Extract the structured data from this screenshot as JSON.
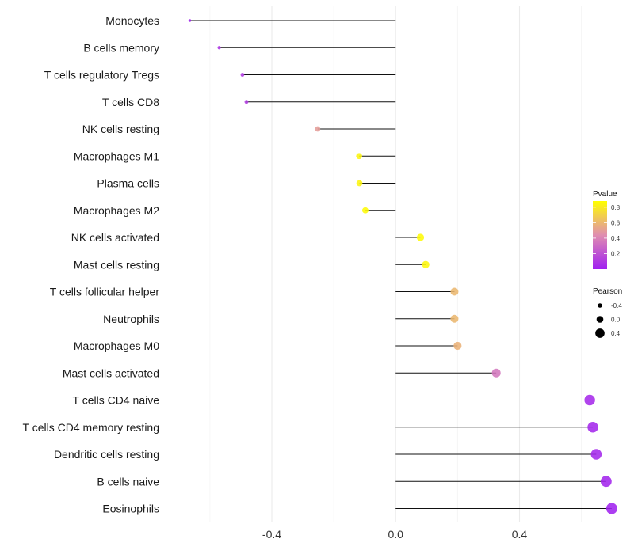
{
  "chart_data": {
    "type": "lollipop",
    "title": "",
    "xlabel": "",
    "ylabel": "",
    "xlim": [
      -0.72,
      0.77
    ],
    "x_ticks": [
      -0.4,
      0.0,
      0.4
    ],
    "x_tick_labels": [
      "-0.4",
      "0.0",
      "0.4"
    ],
    "grid": true,
    "categories": [
      "Monocytes",
      "B cells memory",
      "T cells regulatory  Tregs",
      "T cells CD8",
      "NK cells resting",
      "Macrophages M1",
      "Plasma cells",
      "Macrophages M2",
      "NK cells activated",
      "Mast cells resting",
      "T cells follicular helper",
      "Neutrophils",
      "Macrophages M0",
      "Mast cells activated",
      "T cells CD4 naive",
      "T cells CD4 memory resting",
      "Dendritic cells resting",
      "B cells naive",
      "Eosinophils"
    ],
    "pearson": [
      -0.665,
      -0.57,
      -0.495,
      -0.482,
      -0.252,
      -0.118,
      -0.117,
      -0.098,
      0.08,
      0.097,
      0.19,
      0.19,
      0.2,
      0.325,
      0.627,
      0.637,
      0.648,
      0.68,
      0.698
    ],
    "pvalue": [
      0.01,
      0.08,
      0.1,
      0.12,
      0.5,
      0.84,
      0.84,
      0.86,
      0.86,
      0.85,
      0.6,
      0.6,
      0.58,
      0.35,
      0.04,
      0.03,
      0.03,
      0.02,
      0.01
    ],
    "legend": {
      "color_title": "Pvalue",
      "color_ticks": [
        0.2,
        0.4,
        0.6,
        0.8
      ],
      "color_tick_labels": [
        "0.2",
        "0.4",
        "0.6",
        "0.8"
      ],
      "color_range": [
        0.0,
        0.88
      ],
      "color_low": "#a020f0",
      "color_mid": "#e08eb0",
      "color_high": "#ffff00",
      "size_title": "Pearson",
      "size_values": [
        -0.4,
        0.0,
        0.4
      ],
      "size_labels": [
        "-0.4",
        "0.0",
        "0.4"
      ]
    }
  }
}
